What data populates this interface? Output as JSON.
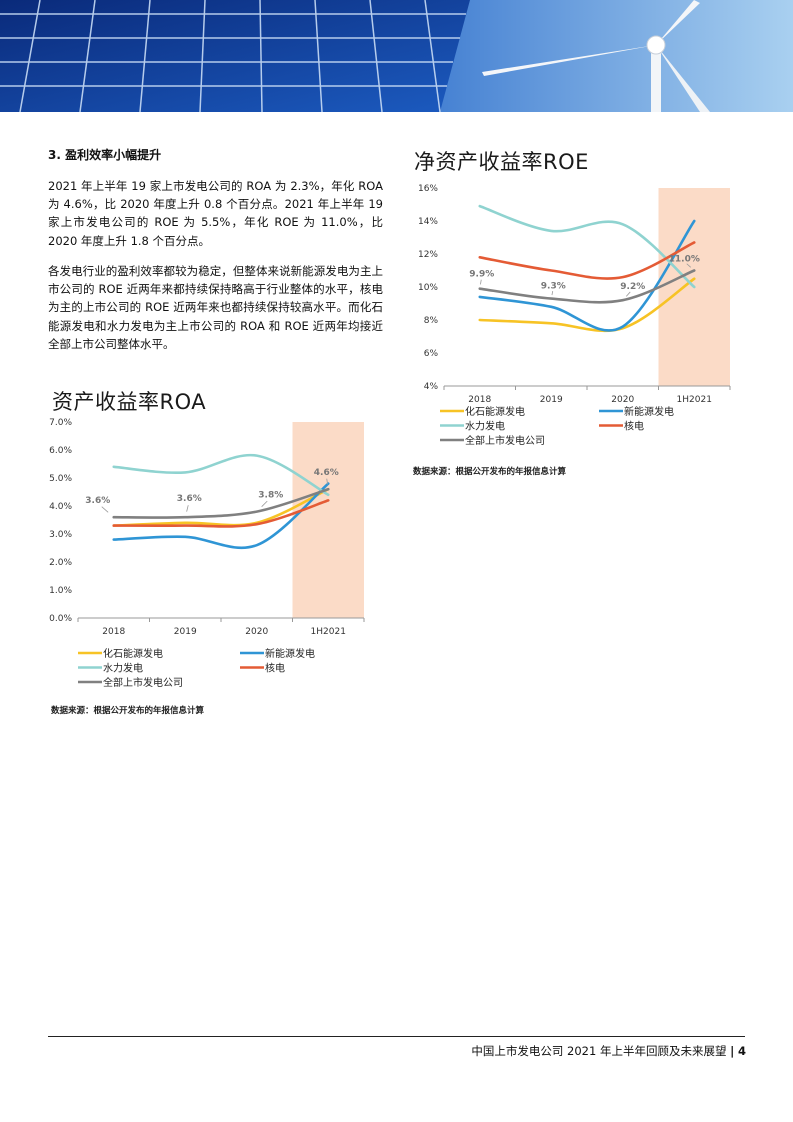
{
  "section": {
    "heading": "3.  盈利效率小幅提升",
    "paragraphs": [
      "2021 年上半年 19 家上市发电公司的 ROA 为 2.3%，年化 ROA 为 4.6%，比 2020 年度上升 0.8 个百分点。2021 年上半年 19 家上市发电公司的 ROE 为 5.5%，年化 ROE 为 11.0%，比 2020 年度上升 1.8 个百分点。",
      "各发电行业的盈利效率都较为稳定，但整体来说新能源发电为主上市公司的 ROE 近两年来都持续保持略高于行业整体的水平，核电为主的上市公司的 ROE 近两年来也都持续保持较高水平。而化石能源发电和水力发电为主上市公司的 ROA 和 ROE 近两年均接近全部上市公司整体水平。"
    ]
  },
  "chart_data": [
    {
      "type": "line",
      "title": "净资产收益率ROE",
      "categories": [
        "2018",
        "2019",
        "2020",
        "1H2021"
      ],
      "ylim": [
        4,
        16
      ],
      "yticks": [
        "4%",
        "6%",
        "8%",
        "10%",
        "12%",
        "14%",
        "16%"
      ],
      "highlight": "1H2021",
      "series": [
        {
          "name": "化石能源发电",
          "color": "#f7c325",
          "values": [
            8.0,
            7.8,
            7.5,
            10.5
          ]
        },
        {
          "name": "新能源发电",
          "color": "#2f95d5",
          "values": [
            9.4,
            8.8,
            7.6,
            14.0
          ]
        },
        {
          "name": "水力发电",
          "color": "#8fd3d0",
          "values": [
            14.9,
            13.4,
            13.8,
            10.0
          ]
        },
        {
          "name": "核电",
          "color": "#e45b35",
          "values": [
            11.8,
            11.0,
            10.6,
            12.7
          ]
        },
        {
          "name": "全部上市发电公司",
          "color": "#808080",
          "values": [
            9.9,
            9.3,
            9.2,
            11.0
          ]
        }
      ],
      "data_labels": [
        "9.9%",
        "9.3%",
        "9.2%",
        "11.0%"
      ],
      "source": "数据来源：根据公开发布的年报信息计算"
    },
    {
      "type": "line",
      "title": "资产收益率ROA",
      "categories": [
        "2018",
        "2019",
        "2020",
        "1H2021"
      ],
      "ylim": [
        0,
        7
      ],
      "yticks": [
        "0.0%",
        "1.0%",
        "2.0%",
        "3.0%",
        "4.0%",
        "5.0%",
        "6.0%",
        "7.0%"
      ],
      "highlight": "1H2021",
      "series": [
        {
          "name": "化石能源发电",
          "color": "#f7c325",
          "values": [
            3.3,
            3.4,
            3.4,
            4.6
          ]
        },
        {
          "name": "新能源发电",
          "color": "#2f95d5",
          "values": [
            2.8,
            2.9,
            2.6,
            4.8
          ]
        },
        {
          "name": "水力发电",
          "color": "#8fd3d0",
          "values": [
            5.4,
            5.2,
            5.8,
            4.4
          ]
        },
        {
          "name": "核电",
          "color": "#e45b35",
          "values": [
            3.3,
            3.3,
            3.35,
            4.2
          ]
        },
        {
          "name": "全部上市发电公司",
          "color": "#808080",
          "values": [
            3.6,
            3.6,
            3.8,
            4.6
          ]
        }
      ],
      "data_labels": [
        "3.6%",
        "3.6%",
        "3.8%",
        "4.6%"
      ],
      "source": "数据来源：根据公开发布的年报信息计算"
    }
  ],
  "footer": {
    "title": "中国上市发电公司 2021 年上半年回顾及未来展望",
    "separator": "|",
    "page": "4"
  }
}
